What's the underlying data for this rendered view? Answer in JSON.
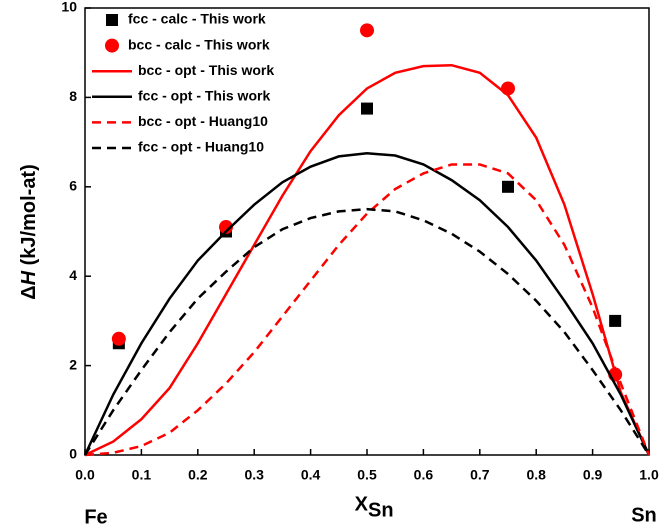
{
  "chart_data": {
    "type": "line",
    "xlabel": "X",
    "xlabel_sub": "Sn",
    "ylabel": [
      "Δ",
      "H",
      " (kJ/mol-at)"
    ],
    "x_end_labels": [
      "Fe",
      "Sn"
    ],
    "xlim": [
      0,
      1
    ],
    "ylim": [
      0,
      10
    ],
    "xticks": [
      {
        "value": 0,
        "label": "0.0"
      },
      0.1,
      0.2,
      0.3,
      0.4,
      0.5,
      0.6,
      0.7,
      0.8,
      0.9,
      {
        "value": 1,
        "label": "1.0"
      }
    ],
    "yticks": [
      0,
      2,
      4,
      6,
      8,
      10
    ],
    "grid": false,
    "legend": "upper left",
    "series": [
      {
        "name": "fcc - calc - This work",
        "color": "#000000",
        "style": "square",
        "x": [
          0.06,
          0.25,
          0.5,
          0.75,
          0.94
        ],
        "values": [
          2.5,
          5.0,
          7.75,
          6.0,
          3.0
        ]
      },
      {
        "name": "bcc - calc - This work",
        "color": "#ff0000",
        "style": "circle",
        "x": [
          0.06,
          0.25,
          0.5,
          0.75,
          0.94
        ],
        "values": [
          2.6,
          5.1,
          9.5,
          8.2,
          1.8
        ]
      },
      {
        "name": "bcc - opt - This work",
        "color": "#ff0000",
        "style": "solid",
        "x": [
          0,
          0.05,
          0.1,
          0.15,
          0.2,
          0.25,
          0.3,
          0.35,
          0.4,
          0.45,
          0.5,
          0.55,
          0.6,
          0.65,
          0.7,
          0.75,
          0.8,
          0.85,
          0.9,
          0.95,
          1
        ],
        "values": [
          0,
          0.3,
          0.8,
          1.5,
          2.5,
          3.6,
          4.7,
          5.8,
          6.8,
          7.6,
          8.2,
          8.55,
          8.7,
          8.72,
          8.55,
          8.05,
          7.1,
          5.6,
          3.6,
          1.4,
          0
        ]
      },
      {
        "name": "fcc - opt - This work",
        "color": "#000000",
        "style": "solid",
        "x": [
          0,
          0.05,
          0.1,
          0.15,
          0.2,
          0.25,
          0.3,
          0.35,
          0.4,
          0.45,
          0.5,
          0.55,
          0.6,
          0.65,
          0.7,
          0.75,
          0.8,
          0.85,
          0.9,
          0.95,
          1
        ],
        "values": [
          0,
          1.35,
          2.5,
          3.5,
          4.35,
          5.0,
          5.6,
          6.1,
          6.45,
          6.68,
          6.75,
          6.7,
          6.5,
          6.15,
          5.7,
          5.1,
          4.35,
          3.45,
          2.5,
          1.35,
          0
        ]
      },
      {
        "name": "bcc - opt - Huang10",
        "color": "#ff0000",
        "style": "dashed",
        "x": [
          0,
          0.05,
          0.1,
          0.15,
          0.2,
          0.25,
          0.3,
          0.35,
          0.4,
          0.45,
          0.5,
          0.55,
          0.6,
          0.65,
          0.7,
          0.75,
          0.8,
          0.85,
          0.9,
          0.95,
          1
        ],
        "values": [
          0,
          0.05,
          0.2,
          0.5,
          1.0,
          1.6,
          2.3,
          3.1,
          3.9,
          4.7,
          5.4,
          5.95,
          6.3,
          6.5,
          6.5,
          6.3,
          5.7,
          4.7,
          3.3,
          1.6,
          0
        ]
      },
      {
        "name": "fcc - opt - Huang10",
        "color": "#000000",
        "style": "dashed",
        "x": [
          0,
          0.05,
          0.1,
          0.15,
          0.2,
          0.25,
          0.3,
          0.35,
          0.4,
          0.45,
          0.5,
          0.55,
          0.6,
          0.65,
          0.7,
          0.75,
          0.8,
          0.85,
          0.9,
          0.95,
          1
        ],
        "values": [
          0,
          1.0,
          1.9,
          2.75,
          3.5,
          4.1,
          4.65,
          5.05,
          5.3,
          5.45,
          5.5,
          5.45,
          5.25,
          4.95,
          4.55,
          4.05,
          3.45,
          2.75,
          1.9,
          1.0,
          0
        ]
      }
    ]
  }
}
